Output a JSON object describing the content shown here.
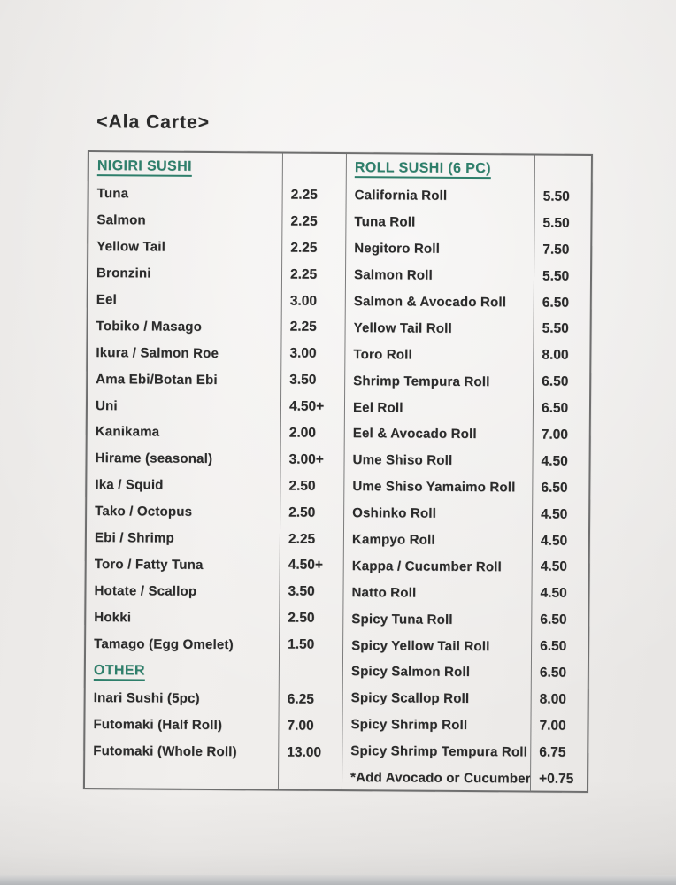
{
  "title": "<Ala Carte>",
  "colors": {
    "paper": "#edebe9",
    "ink": "#2b2b2b",
    "section_green": "#2e7f6b",
    "table_line": "#7c7c7c"
  },
  "menu": {
    "columns": [
      {
        "id": "left",
        "sections": [
          {
            "header": "NIGIRI SUSHI",
            "items": [
              {
                "name": "Tuna",
                "price": "2.25"
              },
              {
                "name": "Salmon",
                "price": "2.25"
              },
              {
                "name": "Yellow Tail",
                "price": "2.25"
              },
              {
                "name": "Bronzini",
                "price": "2.25"
              },
              {
                "name": "Eel",
                "price": "3.00"
              },
              {
                "name": "Tobiko / Masago",
                "price": "2.25"
              },
              {
                "name": "Ikura / Salmon Roe",
                "price": "3.00"
              },
              {
                "name": "Ama Ebi/Botan Ebi",
                "price": "3.50"
              },
              {
                "name": "Uni",
                "price": "4.50+"
              },
              {
                "name": "Kanikama",
                "price": "2.00"
              },
              {
                "name": "Hirame (seasonal)",
                "price": "3.00+"
              },
              {
                "name": "Ika / Squid",
                "price": "2.50"
              },
              {
                "name": "Tako / Octopus",
                "price": "2.50"
              },
              {
                "name": "Ebi / Shrimp",
                "price": "2.25"
              },
              {
                "name": "Toro / Fatty Tuna",
                "price": "4.50+"
              },
              {
                "name": "Hotate / Scallop",
                "price": "3.50"
              },
              {
                "name": "Hokki",
                "price": "2.50"
              },
              {
                "name": "Tamago (Egg Omelet)",
                "price": "1.50"
              }
            ]
          },
          {
            "header": "OTHER",
            "items": [
              {
                "name": "Inari Sushi (5pc)",
                "price": "6.25"
              },
              {
                "name": "Futomaki (Half Roll)",
                "price": "7.00"
              },
              {
                "name": "Futomaki (Whole Roll)",
                "price": "13.00"
              }
            ]
          }
        ]
      },
      {
        "id": "right",
        "sections": [
          {
            "header": "ROLL SUSHI (6 PC)",
            "items": [
              {
                "name": "California Roll",
                "price": "5.50"
              },
              {
                "name": "Tuna Roll",
                "price": "5.50"
              },
              {
                "name": "Negitoro Roll",
                "price": "7.50"
              },
              {
                "name": "Salmon Roll",
                "price": "5.50"
              },
              {
                "name": "Salmon & Avocado Roll",
                "price": "6.50"
              },
              {
                "name": "Yellow Tail Roll",
                "price": "5.50"
              },
              {
                "name": "Toro Roll",
                "price": "8.00"
              },
              {
                "name": "Shrimp Tempura Roll",
                "price": "6.50"
              },
              {
                "name": "Eel Roll",
                "price": "6.50"
              },
              {
                "name": "Eel & Avocado Roll",
                "price": "7.00"
              },
              {
                "name": "Ume Shiso Roll",
                "price": "4.50"
              },
              {
                "name": "Ume Shiso Yamaimo Roll",
                "price": "6.50"
              },
              {
                "name": "Oshinko Roll",
                "price": "4.50"
              },
              {
                "name": "Kampyo Roll",
                "price": "4.50"
              },
              {
                "name": "Kappa / Cucumber Roll",
                "price": "4.50"
              },
              {
                "name": "Natto Roll",
                "price": "4.50"
              },
              {
                "name": "Spicy Tuna Roll",
                "price": "6.50"
              },
              {
                "name": "Spicy Yellow Tail Roll",
                "price": "6.50"
              },
              {
                "name": "Spicy Salmon Roll",
                "price": "6.50"
              },
              {
                "name": "Spicy Scallop Roll",
                "price": "8.00"
              },
              {
                "name": "Spicy Shrimp Roll",
                "price": "7.00"
              },
              {
                "name": "Spicy Shrimp Tempura Roll",
                "price": "6.75"
              },
              {
                "name": "*Add Avocado or Cucumber",
                "price": "+0.75"
              }
            ]
          }
        ]
      }
    ]
  }
}
